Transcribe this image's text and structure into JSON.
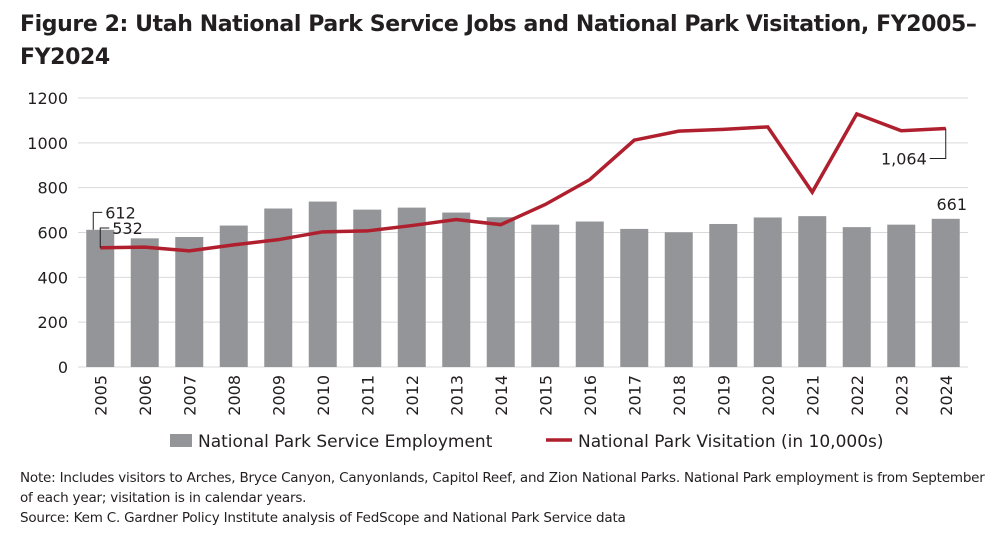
{
  "title": "Figure 2: Utah National Park Service Jobs and National Park Visitation, FY2005–FY2024",
  "note": "Note: Includes visitors to Arches, Bryce Canyon, Canyonlands, Capitol Reef, and Zion National Parks. National Park employment is from September of each year; visitation is in calendar years.",
  "source": "Source: Kem C. Gardner Policy Institute analysis of FedScope and National Park Service data",
  "chart_data": {
    "type": "bar+line",
    "categories": [
      "2005",
      "2006",
      "2007",
      "2008",
      "2009",
      "2010",
      "2011",
      "2012",
      "2013",
      "2014",
      "2015",
      "2016",
      "2017",
      "2018",
      "2019",
      "2020",
      "2021",
      "2022",
      "2023",
      "2024"
    ],
    "ylim": [
      0,
      1200
    ],
    "yticks": [
      "0",
      "200",
      "400",
      "600",
      "800",
      "1000",
      "1200"
    ],
    "grid": true,
    "legend_placement": "bottom",
    "series": [
      {
        "name": "National Park Service Employment",
        "type": "bar",
        "color": "#939598",
        "values": [
          612,
          574,
          580,
          631,
          707,
          738,
          702,
          711,
          689,
          668,
          635,
          649,
          616,
          601,
          638,
          667,
          673,
          624,
          635,
          661
        ]
      },
      {
        "name": "National Park Visitation (in 10,000s)",
        "type": "line",
        "color": "#b01f2e",
        "values": [
          532,
          535,
          518,
          545,
          568,
          603,
          607,
          631,
          658,
          635,
          725,
          836,
          1012,
          1052,
          1060,
          1071,
          780,
          1129,
          1054,
          1064
        ]
      }
    ],
    "annotations": [
      {
        "text": "612",
        "series": 0,
        "category": "2005"
      },
      {
        "text": "532",
        "series": 1,
        "category": "2005"
      },
      {
        "text": "1,064",
        "series": 1,
        "category": "2024"
      },
      {
        "text": "661",
        "series": 0,
        "category": "2024"
      }
    ]
  }
}
